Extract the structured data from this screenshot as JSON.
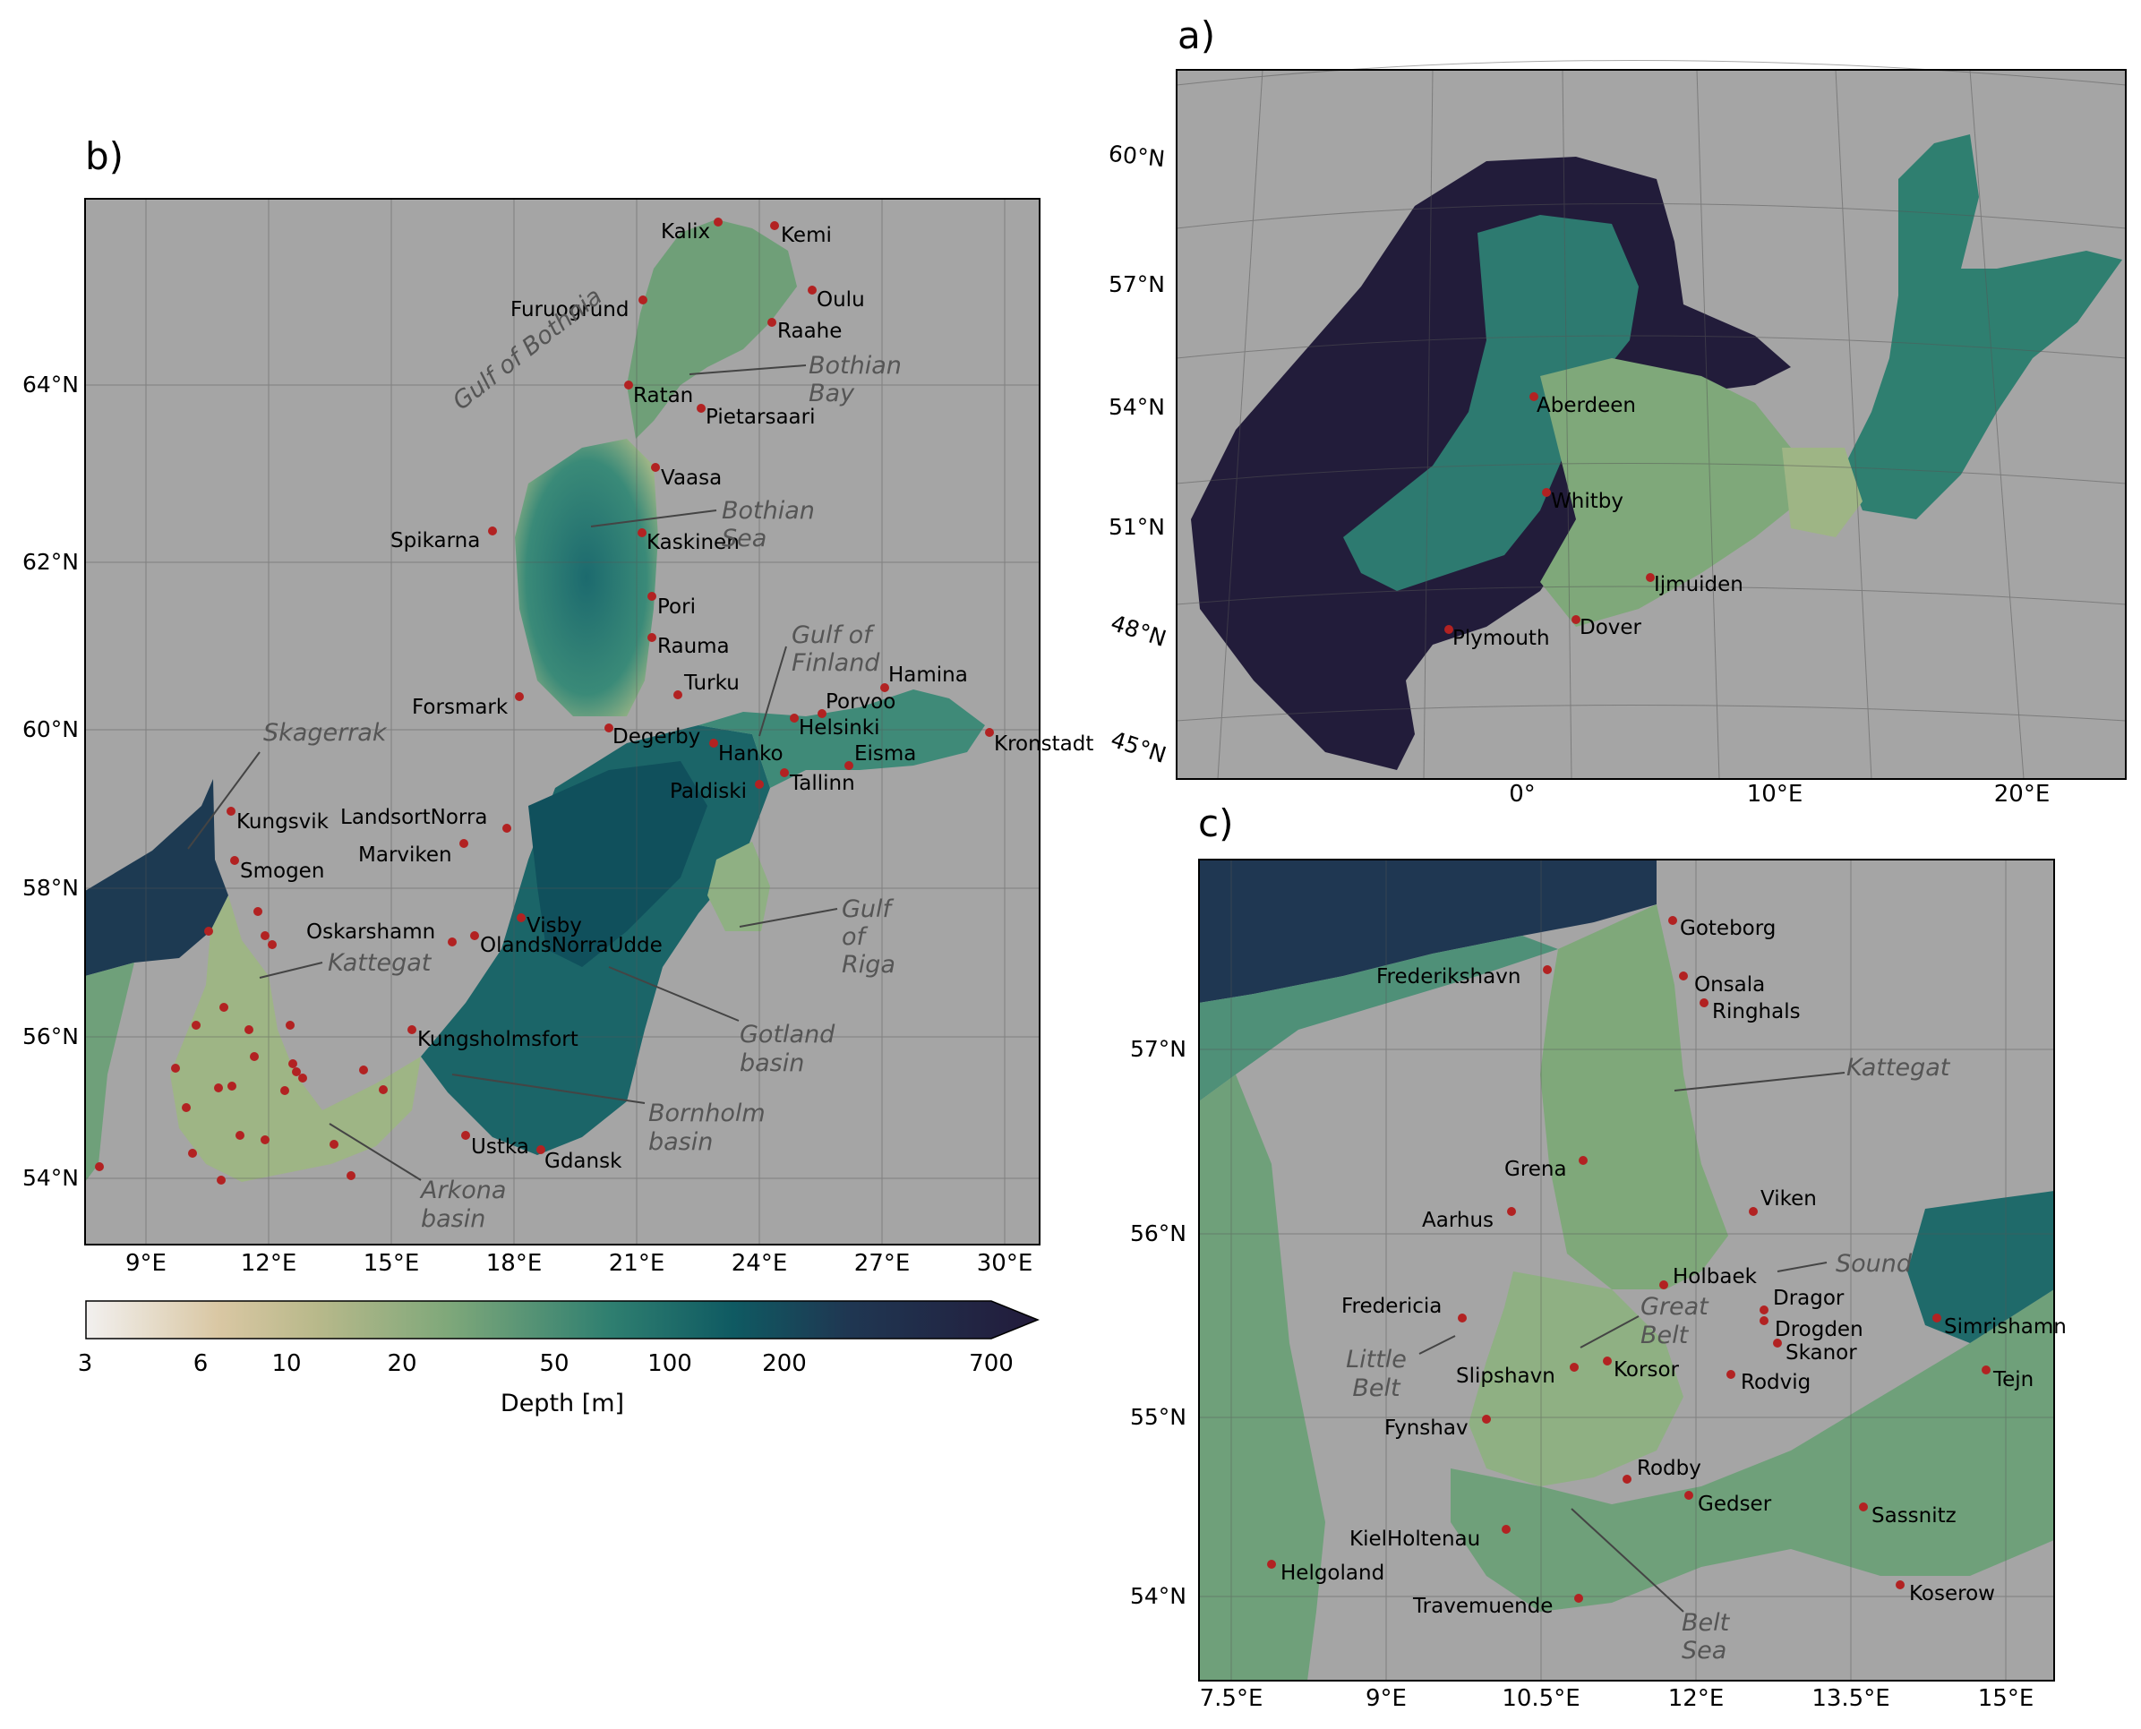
{
  "panels": {
    "a": {
      "label": "a)",
      "lat_ticks": [
        "60°N",
        "57°N",
        "54°N",
        "51°N",
        "48°N",
        "45°N"
      ],
      "lon_ticks": [
        "0°",
        "10°E",
        "20°E"
      ],
      "stations": [
        "Aberdeen",
        "Whitby",
        "Ijmuiden",
        "Dover",
        "Plymouth"
      ]
    },
    "b": {
      "label": "b)",
      "lat_ticks": [
        "64°N",
        "62°N",
        "60°N",
        "58°N",
        "56°N",
        "54°N"
      ],
      "lon_ticks": [
        "9°E",
        "12°E",
        "15°E",
        "18°E",
        "21°E",
        "24°E",
        "27°E",
        "30°E"
      ],
      "stations": [
        "Kalix",
        "Kemi",
        "Oulu",
        "Furuogrund",
        "Raahe",
        "Ratan",
        "Pietarsaari",
        "Vaasa",
        "Spikarna",
        "Kaskinen",
        "Pori",
        "Rauma",
        "Turku",
        "Hamina",
        "Forsmark",
        "Porvoo",
        "Helsinki",
        "Degerby",
        "Hanko",
        "Kronstadt",
        "Eisma",
        "Tallinn",
        "Paldiski",
        "Kungsvik",
        "LandsortNorra",
        "Smogen",
        "Marviken",
        "Oskarshamn",
        "Visby",
        "OlandsNorraUdde",
        "Kungsholmsfort",
        "Ustka",
        "Gdansk"
      ],
      "regions": [
        "Gulf of Bothnia",
        "Bothian Bay",
        "Bothian Sea",
        "Gulf of Finland",
        "Skagerrak",
        "Gulf of Riga",
        "Kattegat",
        "Gotland basin",
        "Bornholm basin",
        "Arkona basin"
      ]
    },
    "c": {
      "label": "c)",
      "lat_ticks": [
        "57°N",
        "56°N",
        "55°N",
        "54°N"
      ],
      "lon_ticks": [
        "7.5°E",
        "9°E",
        "10.5°E",
        "12°E",
        "13.5°E",
        "15°E"
      ],
      "stations": [
        "Goteborg",
        "Frederikshavn",
        "Onsala",
        "Ringhals",
        "Grena",
        "Aarhus",
        "Viken",
        "Holbaek",
        "Dragor",
        "Fredericia",
        "Drogden",
        "Simrishamn",
        "Skanor",
        "Slipshavn",
        "Korsor",
        "Rodvig",
        "Tejn",
        "Fynshav",
        "Rodby",
        "Gedser",
        "Sassnitz",
        "KielHoltenau",
        "Helgoland",
        "Travemuende",
        "Koserow"
      ],
      "regions": [
        "Kattegat",
        "Sound",
        "Great Belt",
        "Little Belt",
        "Belt Sea"
      ]
    }
  },
  "colorbar": {
    "label": "Depth [m]",
    "ticks": [
      "3",
      "6",
      "10",
      "20",
      "50",
      "100",
      "200",
      "700"
    ],
    "tick_values": [
      3,
      6,
      10,
      20,
      50,
      100,
      200,
      700
    ],
    "range": [
      3,
      700
    ],
    "scale": "log",
    "colors": [
      "#f2f0ef",
      "#d9c7a3",
      "#b9b98b",
      "#7fa87a",
      "#2f7f70",
      "#0f5a62",
      "#1f3752",
      "#231b3b"
    ]
  },
  "colors": {
    "land": "#a5a5a5",
    "station": "#b22222",
    "grid": "#555555"
  }
}
